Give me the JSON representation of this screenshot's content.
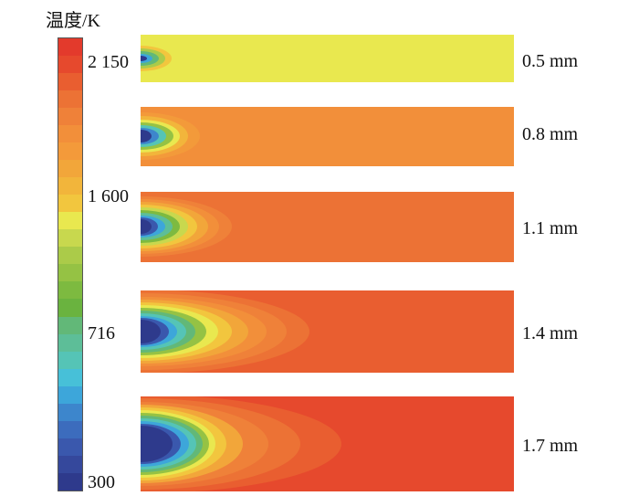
{
  "legend": {
    "title": "温度/K",
    "ticks": [
      {
        "label": "2 150",
        "value": 2150
      },
      {
        "label": "1 600",
        "value": 1600
      },
      {
        "label": "716",
        "value": 716
      },
      {
        "label": "300",
        "value": 300
      }
    ],
    "colors": [
      "#2e3a8c",
      "#35489c",
      "#3a58ad",
      "#3c6cbd",
      "#3d86cc",
      "#3da6da",
      "#47c0d8",
      "#55c4b6",
      "#5dbe98",
      "#62b878",
      "#6ab33f",
      "#7dba40",
      "#95c244",
      "#abcb49",
      "#c8d84e",
      "#e9e84f",
      "#f2c63e",
      "#f2b53b",
      "#f2a63a",
      "#f39a3a",
      "#f28f3a",
      "#ef8139",
      "#ec7235",
      "#e95e30",
      "#e6492d",
      "#e33a2c"
    ]
  },
  "panels": [
    {
      "label": "0.5 mm",
      "background": "#e9e84f"
    },
    {
      "label": "0.8 mm",
      "background": "#f28f3a"
    },
    {
      "label": "1.1 mm",
      "background": "#ec7235"
    },
    {
      "label": "1.4 mm",
      "background": "#e95e30"
    },
    {
      "label": "1.7 mm",
      "background": "#e6492d"
    }
  ]
}
